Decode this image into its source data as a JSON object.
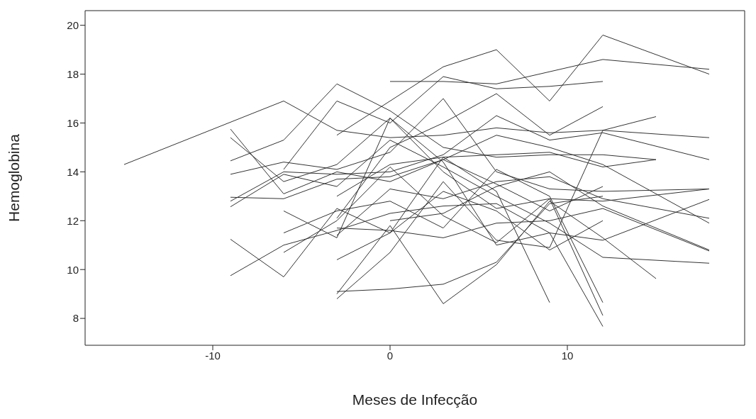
{
  "chart_data": {
    "type": "line",
    "xlabel": "Meses de Infecção",
    "ylabel": "Hemoglobina",
    "xlim": [
      -17.2,
      20
    ],
    "ylim": [
      6.9,
      20.6
    ],
    "xticks": [
      -10,
      0,
      10
    ],
    "yticks": [
      8,
      10,
      12,
      14,
      16,
      18,
      20
    ],
    "grid": false,
    "legend": false,
    "marker": "none",
    "line_style": "solid",
    "series": [
      {
        "color": "#333333",
        "x": [
          -15,
          -6,
          -3,
          0,
          3,
          6,
          9,
          12,
          18
        ],
        "values": [
          14.3,
          16.9,
          15.7,
          15.4,
          15.5,
          15.8,
          15.6,
          15.7,
          15.4
        ]
      },
      {
        "color": "#333333",
        "x": [
          -9,
          -6,
          -3,
          0,
          3,
          6,
          9,
          12
        ],
        "values": [
          15.75,
          13.1,
          14.0,
          13.6,
          14.5,
          13.5,
          12.4,
          13.4
        ]
      },
      {
        "color": "#333333",
        "x": [
          -9,
          -6,
          -3,
          0,
          3,
          6,
          9,
          12,
          18
        ],
        "values": [
          15.4,
          13.6,
          14.3,
          16.2,
          14.0,
          12.5,
          12.9,
          12.8,
          13.3
        ]
      },
      {
        "color": "#333333",
        "x": [
          -9,
          -6,
          -3,
          0,
          3,
          6,
          9,
          12,
          15
        ],
        "values": [
          14.45,
          15.3,
          17.6,
          16.5,
          15.0,
          14.6,
          14.7,
          14.7,
          14.5
        ]
      },
      {
        "color": "#333333",
        "x": [
          -9,
          -6,
          -3,
          0,
          3,
          6,
          9,
          12,
          18
        ],
        "values": [
          13.9,
          14.4,
          14.1,
          14.8,
          17.0,
          14.0,
          13.3,
          13.2,
          13.3
        ]
      },
      {
        "color": "#333333",
        "x": [
          -9,
          -6,
          -3,
          0,
          3,
          6,
          9,
          12,
          18
        ],
        "values": [
          12.96,
          12.9,
          13.7,
          13.8,
          14.5,
          15.5,
          15.0,
          14.3,
          11.9
        ]
      },
      {
        "color": "#333333",
        "x": [
          -9,
          -6,
          -3,
          0,
          3,
          6,
          9,
          12,
          18
        ],
        "values": [
          12.8,
          14.0,
          13.9,
          14.0,
          14.7,
          16.3,
          15.3,
          15.6,
          14.5
        ]
      },
      {
        "color": "#333333",
        "x": [
          -9,
          -6,
          -3,
          0,
          3,
          6,
          9,
          12,
          18
        ],
        "values": [
          12.57,
          13.9,
          13.4,
          15.3,
          14.2,
          13.0,
          11.9,
          10.5,
          10.26
        ]
      },
      {
        "color": "#333333",
        "x": [
          -9,
          -6,
          -3,
          0,
          3,
          6,
          9,
          12
        ],
        "values": [
          11.24,
          9.7,
          12.5,
          11.5,
          13.2,
          12.4,
          10.8,
          12.0
        ]
      },
      {
        "color": "#333333",
        "x": [
          -9,
          -6,
          -3,
          0,
          3,
          6,
          9,
          12,
          18
        ],
        "values": [
          9.75,
          11.0,
          11.6,
          12.3,
          12.6,
          12.7,
          11.5,
          11.2,
          12.87
        ]
      },
      {
        "color": "#333333",
        "x": [
          -6,
          -3,
          0,
          3,
          6,
          9,
          12
        ],
        "values": [
          12.4,
          11.3,
          16.2,
          14.4,
          11.0,
          11.5,
          7.67
        ]
      },
      {
        "color": "#333333",
        "x": [
          -6,
          -3,
          0,
          3,
          6,
          9,
          12
        ],
        "values": [
          11.5,
          12.4,
          12.8,
          11.7,
          14.1,
          13.0,
          8.65
        ]
      },
      {
        "color": "#333333",
        "x": [
          -6,
          -3,
          0,
          3,
          6,
          9,
          12
        ],
        "values": [
          10.7,
          12.0,
          14.2,
          12.2,
          11.1,
          12.9,
          8.12
        ]
      },
      {
        "color": "#333333",
        "x": [
          -3,
          0,
          3,
          6,
          9,
          12,
          18
        ],
        "values": [
          11.7,
          11.6,
          11.3,
          11.9,
          12.0,
          12.5,
          10.76
        ]
      },
      {
        "color": "#333333",
        "x": [
          -3,
          0,
          3,
          6,
          9
        ],
        "values": [
          10.4,
          11.5,
          14.6,
          13.2,
          8.65
        ]
      },
      {
        "color": "#333333",
        "x": [
          -3,
          0,
          3,
          6,
          9,
          12,
          15
        ],
        "values": [
          9.0,
          11.8,
          8.6,
          10.2,
          12.8,
          11.3,
          9.63
        ]
      },
      {
        "color": "#333333",
        "x": [
          -3,
          0,
          3,
          6,
          9,
          12,
          15
        ],
        "values": [
          8.8,
          10.7,
          13.6,
          11.2,
          10.9,
          15.7,
          16.26
        ]
      },
      {
        "color": "#333333",
        "x": [
          -3,
          0,
          3,
          6,
          9,
          12
        ],
        "values": [
          9.1,
          9.2,
          9.4,
          10.3,
          12.7,
          13.0
        ]
      },
      {
        "color": "#333333",
        "x": [
          0,
          3,
          6,
          9,
          12,
          15,
          18
        ],
        "values": [
          17.7,
          17.7,
          17.6,
          18.1,
          18.6,
          18.4,
          18.2
        ]
      },
      {
        "color": "#333333",
        "x": [
          -3,
          0,
          3,
          6,
          9,
          12,
          18
        ],
        "values": [
          15.5,
          16.9,
          18.3,
          19.0,
          16.9,
          19.6,
          18.0
        ]
      },
      {
        "color": "#333333",
        "x": [
          -6,
          -3,
          0,
          3,
          6,
          9,
          12
        ],
        "values": [
          14.1,
          16.9,
          16.0,
          17.9,
          17.4,
          17.5,
          17.7
        ]
      },
      {
        "color": "#333333",
        "x": [
          -3,
          0,
          3,
          6,
          9,
          12
        ],
        "values": [
          12.1,
          15.0,
          16.0,
          17.2,
          15.5,
          16.67
        ]
      },
      {
        "color": "#333333",
        "x": [
          -3,
          0,
          3,
          6,
          9,
          12,
          15
        ],
        "values": [
          13.0,
          14.3,
          14.6,
          14.7,
          14.8,
          14.2,
          14.5
        ]
      },
      {
        "color": "#333333",
        "x": [
          -3,
          0,
          3,
          6,
          9,
          12,
          18
        ],
        "values": [
          11.4,
          13.3,
          12.9,
          13.6,
          13.8,
          12.9,
          12.1
        ]
      },
      {
        "color": "#333333",
        "x": [
          0,
          3,
          6,
          9,
          12,
          18
        ],
        "values": [
          12.0,
          12.3,
          13.4,
          14.0,
          12.6,
          10.8
        ]
      }
    ]
  }
}
